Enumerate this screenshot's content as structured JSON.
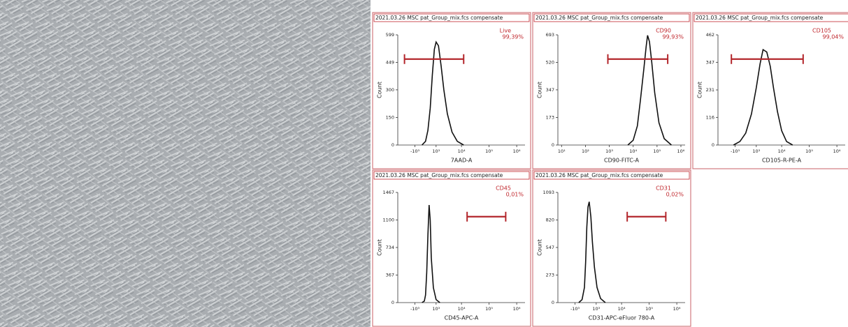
{
  "chart_data": [
    {
      "type": "line",
      "title": "2021.03.26 MSC pat_Group_mix.fcs compensate",
      "xlabel": "7AAD-A",
      "ylabel": "Count",
      "x_scale": "biexponential",
      "x_linear_width": 1000,
      "x": [
        -300,
        0,
        200,
        400,
        600,
        800,
        1000,
        1300,
        1700,
        2200,
        3000,
        4500,
        7000,
        12000
      ],
      "values": [
        0,
        20,
        80,
        200,
        380,
        520,
        560,
        540,
        430,
        300,
        170,
        70,
        20,
        0
      ],
      "color": "#111111",
      "xlim": [
        -5000,
        2000000
      ],
      "xticks": [
        {
          "value": -1000,
          "label": "-10³"
        },
        {
          "value": 1000,
          "label": "10³"
        },
        {
          "value": 10000,
          "label": "10⁴"
        },
        {
          "value": 100000,
          "label": "10⁵"
        },
        {
          "value": 1000000,
          "label": "10⁶"
        }
      ],
      "ylim": [
        0,
        599
      ],
      "yticks": [
        0,
        150,
        300,
        449,
        599
      ],
      "gate": {
        "name": "Live",
        "percent": "99,39%",
        "range": [
          -2800,
          12000
        ],
        "color": "#b3262b"
      }
    },
    {
      "type": "line",
      "title": "2021.03.26 MSC pat_Group_mix.fcs compensate",
      "xlabel": "CD90-FITC-A",
      "ylabel": "Count",
      "x_scale": "log",
      "x": [
        6000,
        10000,
        15000,
        20000,
        28000,
        35000,
        40000,
        48000,
        60000,
        80000,
        120000,
        200000,
        400000
      ],
      "values": [
        0,
        30,
        120,
        280,
        480,
        620,
        690,
        650,
        520,
        330,
        140,
        40,
        0
      ],
      "color": "#111111",
      "xlim": [
        7,
        1500000
      ],
      "xticks": [
        {
          "value": 10,
          "label": "10¹"
        },
        {
          "value": 100,
          "label": "10²"
        },
        {
          "value": 1000,
          "label": "10³"
        },
        {
          "value": 10000,
          "label": "10⁴"
        },
        {
          "value": 100000,
          "label": "10⁵"
        },
        {
          "value": 1000000,
          "label": "10⁶"
        }
      ],
      "ylim": [
        0,
        693
      ],
      "yticks": [
        0,
        173,
        347,
        520,
        693
      ],
      "gate": {
        "name": "CD90",
        "percent": "99,93%",
        "range": [
          870,
          280000
        ],
        "color": "#b3262b"
      }
    },
    {
      "type": "line",
      "title": "2021.03.26 MSC pat_Group_mix.fcs compensate",
      "xlabel": "CD105-R-PE-A",
      "ylabel": "Count",
      "x_scale": "biexponential",
      "x_linear_width": 1000,
      "x": [
        -1200,
        -500,
        0,
        500,
        1000,
        1500,
        2000,
        2800,
        3800,
        5000,
        7000,
        10000,
        15000,
        25000
      ],
      "values": [
        0,
        15,
        50,
        130,
        240,
        340,
        400,
        390,
        330,
        240,
        140,
        60,
        15,
        0
      ],
      "color": "#111111",
      "xlim": [
        -5000,
        2000000
      ],
      "xticks": [
        {
          "value": -1000,
          "label": "-10³"
        },
        {
          "value": 1000,
          "label": "10³"
        },
        {
          "value": 10000,
          "label": "10⁴"
        },
        {
          "value": 100000,
          "label": "10⁵"
        },
        {
          "value": 1000000,
          "label": "10⁶"
        }
      ],
      "ylim": [
        0,
        462
      ],
      "yticks": [
        0,
        116,
        231,
        347,
        462
      ],
      "gate": {
        "name": "CD105",
        "percent": "99,04%",
        "range": [
          -1500,
          60000
        ],
        "color": "#b3262b"
      }
    },
    {
      "type": "line",
      "title": "2021.03.26 MSC pat_Group_mix.fcs compensate",
      "xlabel": "CD45-APC-A",
      "ylabel": "Count",
      "x_scale": "biexponential",
      "x_linear_width": 1000,
      "x": [
        -300,
        -100,
        0,
        100,
        200,
        300,
        400,
        500,
        700,
        1000,
        1500
      ],
      "values": [
        0,
        20,
        100,
        400,
        900,
        1300,
        1100,
        600,
        200,
        40,
        0
      ],
      "color": "#111111",
      "xlim": [
        -5000,
        2000000
      ],
      "xticks": [
        {
          "value": -1000,
          "label": "-10³"
        },
        {
          "value": 1000,
          "label": "10³"
        },
        {
          "value": 10000,
          "label": "10⁴"
        },
        {
          "value": 100000,
          "label": "10⁵"
        },
        {
          "value": 1000000,
          "label": "10⁶"
        }
      ],
      "ylim": [
        0,
        1467
      ],
      "yticks": [
        0,
        367,
        734,
        1100,
        1467
      ],
      "gate": {
        "name": "CD45",
        "percent": "0,01%",
        "range": [
          16000,
          400000
        ],
        "color": "#b3262b"
      }
    },
    {
      "type": "line",
      "title": "2021.03.26 MSC pat_Group_mix.fcs compensate",
      "xlabel": "CD31-APC-eFluor 780-A",
      "ylabel": "Count",
      "x_scale": "biexponential",
      "x_linear_width": 1000,
      "x": [
        -600,
        -300,
        -100,
        0,
        100,
        200,
        300,
        450,
        600,
        800,
        1100,
        1600,
        2500
      ],
      "values": [
        0,
        30,
        150,
        400,
        750,
        950,
        1000,
        850,
        600,
        350,
        150,
        40,
        0
      ],
      "color": "#111111",
      "xlim": [
        -5000,
        2000000
      ],
      "xticks": [
        {
          "value": -1000,
          "label": "-10³"
        },
        {
          "value": 1000,
          "label": "10³"
        },
        {
          "value": 10000,
          "label": "10⁴"
        },
        {
          "value": 100000,
          "label": "10⁵"
        },
        {
          "value": 1000000,
          "label": "10⁶"
        }
      ],
      "ylim": [
        0,
        1093
      ],
      "yticks": [
        0,
        273,
        547,
        820,
        1093
      ],
      "gate": {
        "name": "CD31",
        "percent": "0,02%",
        "range": [
          16000,
          400000
        ],
        "color": "#b3262b"
      }
    }
  ]
}
